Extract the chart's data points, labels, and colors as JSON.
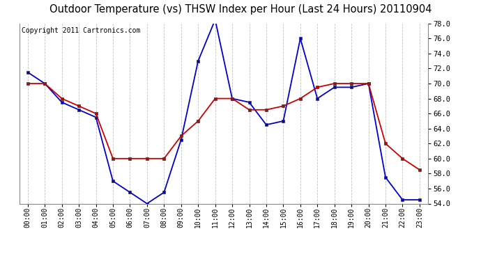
{
  "title": "Outdoor Temperature (vs) THSW Index per Hour (Last 24 Hours) 20110904",
  "copyright": "Copyright 2011 Cartronics.com",
  "hours": [
    "00:00",
    "01:00",
    "02:00",
    "03:00",
    "04:00",
    "05:00",
    "06:00",
    "07:00",
    "08:00",
    "09:00",
    "10:00",
    "11:00",
    "12:00",
    "13:00",
    "14:00",
    "15:00",
    "16:00",
    "17:00",
    "18:00",
    "19:00",
    "20:00",
    "21:00",
    "22:00",
    "23:00"
  ],
  "temp": [
    70.0,
    70.0,
    68.0,
    67.0,
    66.0,
    60.0,
    60.0,
    60.0,
    60.0,
    63.0,
    65.0,
    68.0,
    68.0,
    66.5,
    66.5,
    67.0,
    68.0,
    69.5,
    70.0,
    70.0,
    70.0,
    62.0,
    60.0,
    58.5
  ],
  "thsw": [
    71.5,
    70.0,
    67.5,
    66.5,
    65.5,
    57.0,
    55.5,
    54.0,
    55.5,
    62.5,
    73.0,
    78.5,
    68.0,
    67.5,
    64.5,
    65.0,
    76.0,
    68.0,
    69.5,
    69.5,
    70.0,
    57.5,
    54.5,
    54.5
  ],
  "temp_color": "#cc0000",
  "thsw_color": "#0000cc",
  "ylim_min": 54.0,
  "ylim_max": 78.0,
  "ytick_step": 2.0,
  "bg_color": "#ffffff",
  "plot_bg_color": "#ffffff",
  "grid_color": "#bbbbbb",
  "title_fontsize": 10.5,
  "copyright_fontsize": 7
}
